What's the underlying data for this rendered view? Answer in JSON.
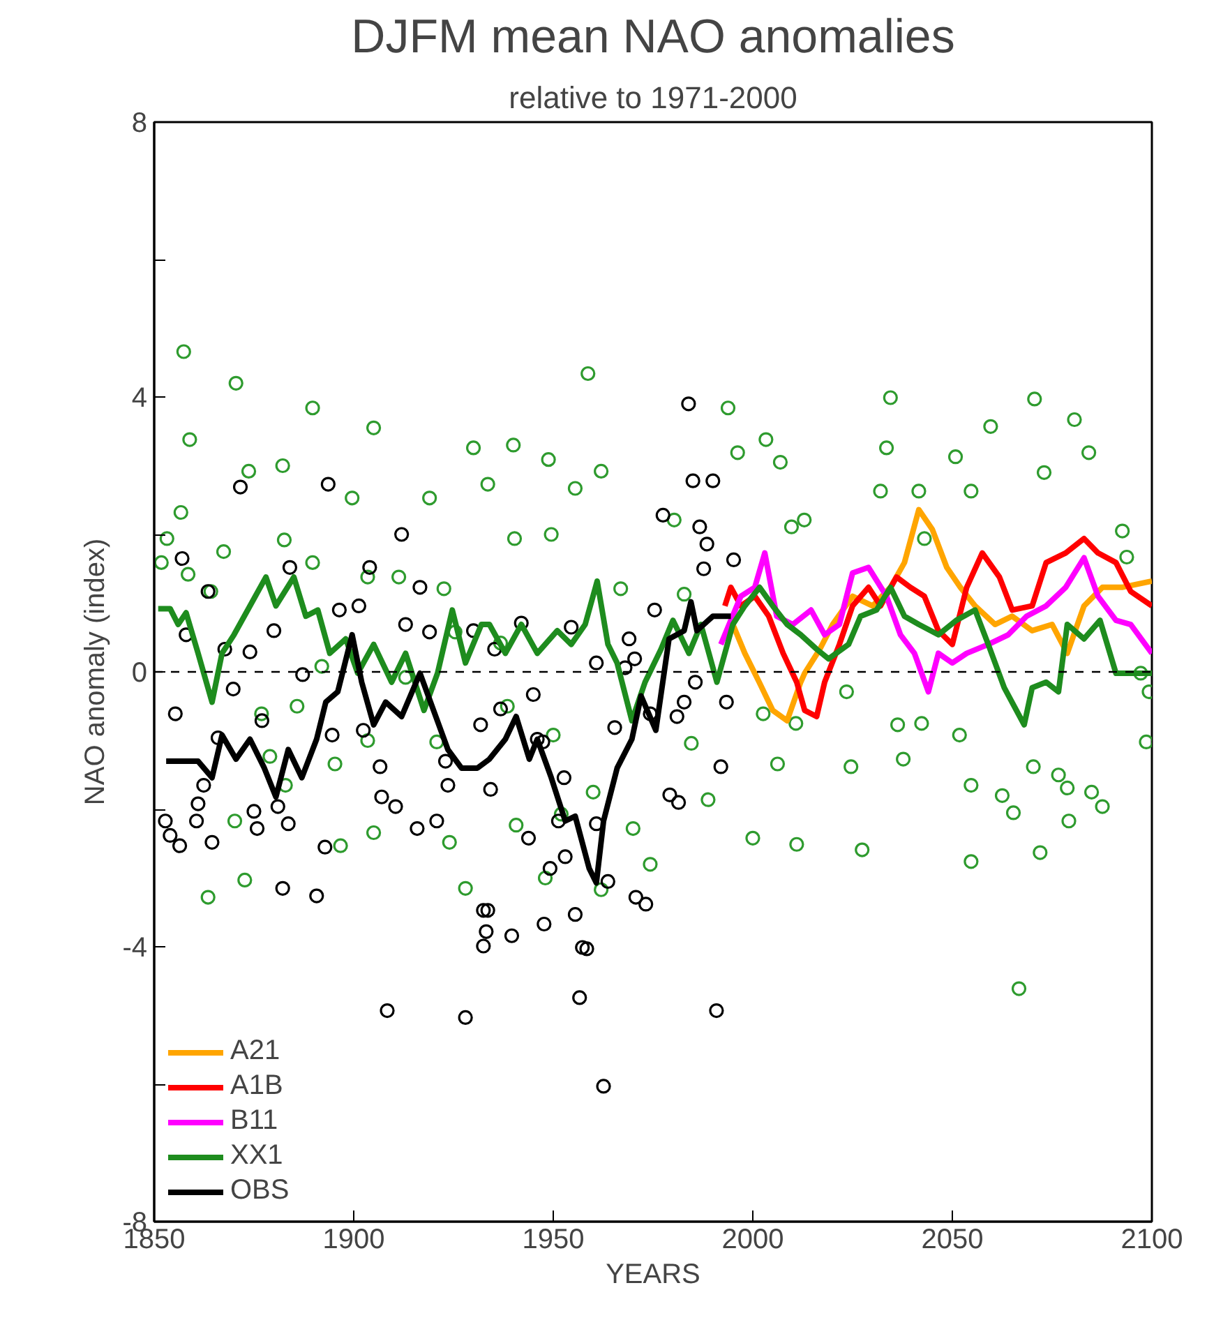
{
  "chart_data": {
    "type": "line",
    "title": "DJFM mean NAO anomalies",
    "subtitle": "relative to 1971-2000",
    "xlabel": "YEARS",
    "ylabel": "NAO anomaly (index)",
    "xlim": [
      1850,
      2100
    ],
    "ylim": [
      -8,
      8
    ],
    "xticks": [
      1850,
      1900,
      1950,
      2000,
      2050,
      2100
    ],
    "yticks": [
      -8,
      {
        "value": -6,
        "label": null
      },
      -4,
      {
        "value": -2,
        "label": null
      },
      0,
      {
        "value": 2,
        "label": null
      },
      4,
      {
        "value": 6,
        "label": null
      },
      8
    ],
    "grid": false,
    "legend": "bottom left",
    "line_style": "solid",
    "ref_lines": [
      {
        "axis": "y",
        "value": 0,
        "label": null,
        "color": "#000000",
        "line_style": "dashed"
      }
    ],
    "series": [
      {
        "type": "scatter",
        "marker": "circle",
        "color": "#2e9b2e",
        "x": [
          1857.4,
          1853.2,
          1856.7,
          1858.9,
          1851.8,
          1864.2,
          1870.5,
          1873.7,
          1882.2,
          1889.7,
          1889.7,
          1899.6,
          1905,
          1903.5,
          1882.6,
          1858.5,
          1867.4,
          1892,
          1876.9,
          1870.2,
          1863.5,
          1872.7,
          1879,
          1882.9,
          1885.8,
          1895.3,
          1905,
          1896.7,
          1903.5,
          1911.3,
          1913,
          1919,
          1922.6,
          1925.4,
          1920.8,
          1924,
          1928,
          1930,
          1933.6,
          1940,
          1940.3,
          1948.8,
          1949.5,
          1936.8,
          1938.5,
          1940.7,
          1948,
          1952,
          1955.5,
          1950,
          1960,
          1962,
          1958.7,
          1962,
          1966.9,
          1970,
          1974.3,
          1980.3,
          1982.8,
          1984.6,
          1988.8,
          1993.8,
          1996.2,
          2003.3,
          2006.9,
          2012.9,
          2009.7,
          2002.6,
          2006.2,
          2011,
          2000,
          2010.8,
          2034.5,
          2033.5,
          2032,
          2041.6,
          2043,
          2050.8,
          2054.7,
          2059.6,
          2070.6,
          2073,
          2080.6,
          2084.2,
          2092.6,
          2093.7,
          2036.3,
          2042.3,
          2051.8,
          2054.7,
          2062.5,
          2070.3,
          2076.6,
          2078.8,
          2084.9,
          2087.6,
          2065.3,
          2072,
          2079.2,
          2054.7,
          2027.4,
          2037.7,
          2024.6,
          2066.7,
          2023.5,
          2099.3,
          2098.6,
          2097.2
        ],
        "values": [
          4.66,
          1.94,
          2.32,
          3.38,
          1.59,
          1.17,
          4.2,
          2.92,
          3.0,
          3.84,
          1.59,
          2.53,
          3.55,
          1.38,
          1.92,
          1.42,
          1.75,
          0.08,
          -0.61,
          -2.17,
          -3.28,
          -3.03,
          -1.23,
          -1.65,
          -0.5,
          -1.34,
          -2.34,
          -2.53,
          -1.0,
          1.38,
          -0.08,
          2.53,
          1.21,
          0.58,
          -1.02,
          -2.48,
          -3.15,
          3.26,
          2.73,
          3.3,
          1.94,
          3.09,
          2.0,
          0.42,
          -0.5,
          -2.23,
          -3.0,
          -2.07,
          2.67,
          -0.92,
          -1.75,
          -3.17,
          4.34,
          2.92,
          1.21,
          -2.28,
          -2.8,
          2.21,
          1.13,
          -1.04,
          -1.86,
          3.84,
          3.19,
          3.38,
          3.05,
          2.21,
          2.11,
          -0.61,
          -1.34,
          -2.51,
          -2.42,
          -0.75,
          3.99,
          3.26,
          2.63,
          2.63,
          1.94,
          3.13,
          2.63,
          3.57,
          3.97,
          2.9,
          3.67,
          3.19,
          2.05,
          1.67,
          -0.77,
          -0.75,
          -0.92,
          -1.65,
          -1.8,
          -1.38,
          -1.5,
          -1.69,
          -1.75,
          -1.96,
          -2.05,
          -2.63,
          -2.17,
          -2.76,
          -2.59,
          -1.27,
          -1.38,
          -4.61,
          -0.29,
          -0.29,
          -1.02,
          -0.02
        ]
      },
      {
        "type": "scatter",
        "marker": "circle",
        "color": "#000000",
        "x": [
          1871.6,
          1893.6,
          1912,
          1857,
          1863.5,
          1884,
          1904,
          1916.6,
          1896.4,
          1901.3,
          1913,
          1919,
          1930,
          1880,
          1858,
          1867.7,
          1874,
          1887.2,
          1869.8,
          1855.3,
          1877,
          1894.6,
          1902.4,
          1906.6,
          1923,
          1923.6,
          1866,
          1862.4,
          1861,
          1860.6,
          1864.5,
          1852.8,
          1854,
          1856.4,
          1875,
          1875.8,
          1881,
          1883.6,
          1892.8,
          1907,
          1910.5,
          1915.9,
          1920.8,
          1882.2,
          1890.7,
          1908.4,
          1928,
          1932.5,
          1933.2,
          1983.9,
          1985,
          1990,
          1977.5,
          1986.7,
          1988.5,
          1987.7,
          1995.2,
          1975.4,
          1969,
          1970.4,
          1968,
          1960.8,
          1954.5,
          1942,
          1935.3,
          1945,
          1936.8,
          1931.8,
          1985.6,
          1982.8,
          1981,
          1993.4,
          1965.4,
          1974.3,
          1946,
          1947.4,
          1952.7,
          1934.3,
          1992,
          1979.2,
          1981.4,
          1943.8,
          1951.3,
          1953,
          1949.2,
          1960.8,
          1963.7,
          1970.7,
          1973.2,
          1933.6,
          1932.5,
          1939.6,
          1947.7,
          1955.5,
          1957.3,
          1958.4,
          1956.6,
          1990.9,
          1962.6
        ],
        "values": [
          2.69,
          2.73,
          2.0,
          1.65,
          1.17,
          1.52,
          1.52,
          1.23,
          0.9,
          0.96,
          0.69,
          0.58,
          0.6,
          0.6,
          0.54,
          0.33,
          0.29,
          -0.04,
          -0.25,
          -0.61,
          -0.71,
          -0.92,
          -0.85,
          -1.38,
          -1.3,
          -1.65,
          -0.96,
          -1.65,
          -1.92,
          -2.17,
          -2.48,
          -2.17,
          -2.38,
          -2.53,
          -2.03,
          -2.28,
          -1.96,
          -2.21,
          -2.55,
          -1.82,
          -1.96,
          -2.28,
          -2.17,
          -3.15,
          -3.26,
          -4.93,
          -5.03,
          -3.47,
          -3.78,
          3.9,
          2.78,
          2.78,
          2.28,
          2.11,
          1.86,
          1.5,
          1.63,
          0.9,
          0.48,
          0.19,
          0.06,
          0.13,
          0.65,
          0.71,
          0.33,
          -0.33,
          -0.54,
          -0.77,
          -0.15,
          -0.44,
          -0.65,
          -0.44,
          -0.81,
          -0.61,
          -0.98,
          -1.02,
          -1.54,
          -1.71,
          -1.38,
          -1.79,
          -1.9,
          -2.42,
          -2.17,
          -2.69,
          -2.86,
          -2.21,
          -3.05,
          -3.28,
          -3.38,
          -3.47,
          -3.99,
          -3.84,
          -3.67,
          -3.53,
          -4.01,
          -4.03,
          -4.74,
          -4.93,
          -6.03
        ]
      },
      {
        "name": "A21",
        "color": "#ffa500",
        "x": [
          1995,
          1998,
          2001.6,
          2005,
          2008.6,
          2012,
          2013,
          2016.8,
          2020,
          2025,
          2030,
          2034.5,
          2038,
          2041.6,
          2045,
          2048.6,
          2052,
          2055.7,
          2060.7,
          2065,
          2070,
          2075,
          2078.8,
          2083,
          2087.6,
          2092.5,
          2100
        ],
        "values": [
          0.69,
          0.27,
          -0.15,
          -0.56,
          -0.71,
          -0.15,
          -0.02,
          0.33,
          0.69,
          1.1,
          0.96,
          1.23,
          1.59,
          2.36,
          2.07,
          1.52,
          1.23,
          0.96,
          0.69,
          0.81,
          0.6,
          0.69,
          0.27,
          0.96,
          1.23,
          1.23,
          1.32
        ]
      },
      {
        "name": "A1B",
        "color": "#ff0000",
        "x": [
          1993,
          1994.5,
          1997,
          2000.5,
          2004,
          2007.6,
          2011,
          2013,
          2016,
          2018,
          2021.7,
          2025,
          2029,
          2032,
          2036,
          2039.5,
          2043,
          2046.5,
          2050,
          2053.6,
          2057.5,
          2061.8,
          2065,
          2070,
          2073.5,
          2078.4,
          2083,
          2086.5,
          2091,
          2094.7,
          2100
        ],
        "values": [
          0.96,
          1.23,
          0.96,
          1.1,
          0.81,
          0.27,
          -0.15,
          -0.56,
          -0.65,
          -0.15,
          0.4,
          0.96,
          1.23,
          0.96,
          1.38,
          1.23,
          1.1,
          0.6,
          0.4,
          1.23,
          1.73,
          1.38,
          0.9,
          0.96,
          1.59,
          1.73,
          1.94,
          1.73,
          1.59,
          1.17,
          0.96
        ]
      },
      {
        "name": "B11",
        "color": "#ff00ff",
        "x": [
          1992,
          1997,
          2000.5,
          2003,
          2006,
          2010,
          2014.6,
          2018,
          2021.7,
          2025,
          2029,
          2033.5,
          2037,
          2040.5,
          2044,
          2046.5,
          2050,
          2053.6,
          2059,
          2064,
          2068.6,
          2073.5,
          2078.4,
          2083,
          2086.5,
          2091,
          2094.7,
          2100
        ],
        "values": [
          0.4,
          1.1,
          1.23,
          1.73,
          0.81,
          0.69,
          0.9,
          0.54,
          0.69,
          1.44,
          1.52,
          1.1,
          0.54,
          0.27,
          -0.29,
          0.27,
          0.13,
          0.27,
          0.4,
          0.54,
          0.81,
          0.96,
          1.23,
          1.66,
          1.1,
          0.75,
          0.69,
          0.27
        ]
      },
      {
        "name": "XX1",
        "color": "#1e8c1e",
        "x": [
          1851,
          1854,
          1856,
          1858,
          1861,
          1864.5,
          1867,
          1870,
          1874,
          1878,
          1880.5,
          1885,
          1888,
          1891,
          1894,
          1898,
          1901,
          1905,
          1909.5,
          1913,
          1917.6,
          1921,
          1924.7,
          1928,
          1932,
          1934,
          1938,
          1942,
          1946,
          1951,
          1954.5,
          1958,
          1961,
          1963.7,
          1966,
          1969.7,
          1973,
          1977,
          1980,
          1984,
          1987,
          1991,
          1995,
          1998,
          2001.7,
          2005,
          2008.6,
          2012,
          2016,
          2019,
          2024,
          2027,
          2031,
          2034.5,
          2038,
          2041.6,
          2046.5,
          2051,
          2055.7,
          2059,
          2063,
          2068,
          2070,
          2073.5,
          2076.6,
          2078.8,
          2083,
          2087,
          2091,
          2100
        ],
        "values": [
          0.92,
          0.92,
          0.69,
          0.86,
          0.27,
          -0.44,
          0.27,
          0.54,
          0.96,
          1.38,
          0.96,
          1.38,
          0.81,
          0.9,
          0.27,
          0.48,
          -0.02,
          0.4,
          -0.15,
          0.27,
          -0.56,
          -0.02,
          0.9,
          0.13,
          0.69,
          0.69,
          0.27,
          0.69,
          0.27,
          0.6,
          0.4,
          0.69,
          1.32,
          0.4,
          0.13,
          -0.71,
          -0.15,
          0.33,
          0.75,
          0.27,
          0.69,
          -0.15,
          0.69,
          0.96,
          1.23,
          0.96,
          0.69,
          0.54,
          0.33,
          0.19,
          0.4,
          0.81,
          0.9,
          1.23,
          0.81,
          0.69,
          0.54,
          0.75,
          0.9,
          0.4,
          -0.23,
          -0.77,
          -0.23,
          -0.15,
          -0.29,
          0.69,
          0.48,
          0.75,
          -0.02,
          -0.02
        ]
      },
      {
        "name": "OBS",
        "color": "#000000",
        "x": [
          1853,
          1861,
          1864.5,
          1867,
          1870.5,
          1874,
          1877.6,
          1880.5,
          1883.6,
          1887,
          1890.7,
          1893,
          1896,
          1899.6,
          1902,
          1905,
          1908,
          1912,
          1916.6,
          1920,
          1923.6,
          1927,
          1931,
          1934,
          1938,
          1940.7,
          1944,
          1946,
          1949.5,
          1953,
          1955.5,
          1959,
          1960.8,
          1962.6,
          1966,
          1969.7,
          1972,
          1975.7,
          1979,
          1982.8,
          1984.5,
          1986,
          1990,
          1994.5
        ],
        "values": [
          -1.3,
          -1.3,
          -1.54,
          -0.92,
          -1.27,
          -0.98,
          -1.4,
          -1.82,
          -1.13,
          -1.54,
          -0.98,
          -0.44,
          -0.29,
          0.54,
          -0.15,
          -0.77,
          -0.44,
          -0.65,
          -0.02,
          -0.56,
          -1.13,
          -1.4,
          -1.4,
          -1.27,
          -0.98,
          -0.65,
          -1.27,
          -0.98,
          -1.54,
          -2.17,
          -2.1,
          -2.86,
          -3.07,
          -2.17,
          -1.4,
          -0.98,
          -0.35,
          -0.85,
          0.48,
          0.6,
          1.02,
          0.6,
          0.81,
          0.81
        ]
      }
    ]
  }
}
